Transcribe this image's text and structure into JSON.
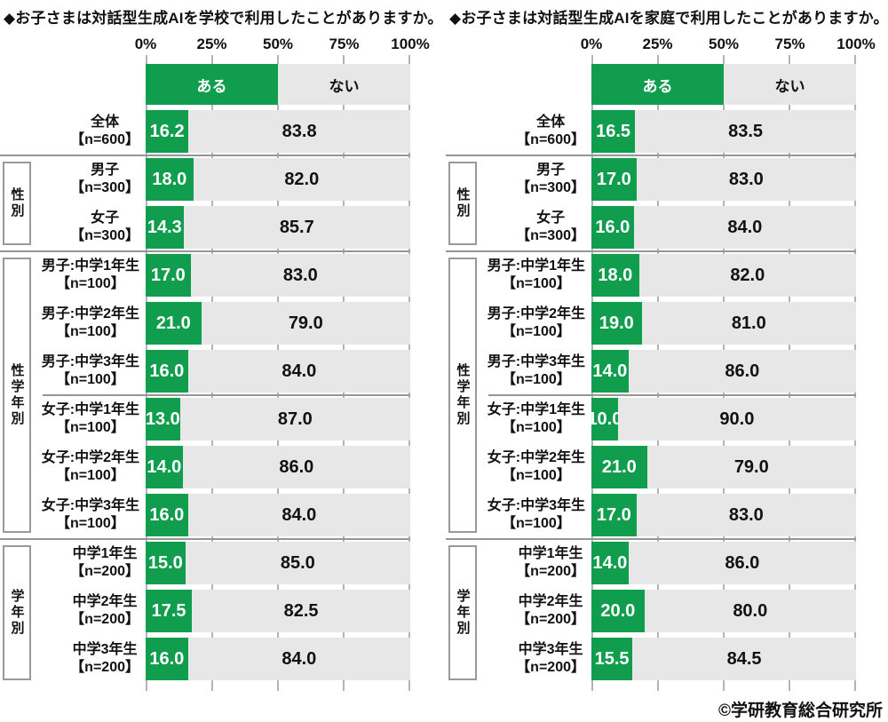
{
  "footer": "©学研教育総合研究所",
  "colors": {
    "yes": "#109E4E",
    "no": "#E7E7E7",
    "tick": "#B4B4B4",
    "separator": "#969696"
  },
  "chart_data": [
    {
      "type": "bar",
      "stacked": true,
      "orientation": "horizontal",
      "title": "◆お子さまは対話型生成AIを学校で利用したことがありますか。",
      "xlim": [
        0,
        100
      ],
      "x_ticks": [
        "0%",
        "25%",
        "50%",
        "75%",
        "100%"
      ],
      "legend": [
        "ある",
        "ない"
      ],
      "legend_position": "top",
      "rows": [
        {
          "label": "全体",
          "n": "【n=600】",
          "yes": "16.2",
          "no": "83.8"
        },
        {
          "label": "男子",
          "n": "【n=300】",
          "yes": "18.0",
          "no": "82.0"
        },
        {
          "label": "女子",
          "n": "【n=300】",
          "yes": "14.3",
          "no": "85.7"
        },
        {
          "label": "男子:中学1年生",
          "n": "【n=100】",
          "yes": "17.0",
          "no": "83.0"
        },
        {
          "label": "男子:中学2年生",
          "n": "【n=100】",
          "yes": "21.0",
          "no": "79.0"
        },
        {
          "label": "男子:中学3年生",
          "n": "【n=100】",
          "yes": "16.0",
          "no": "84.0"
        },
        {
          "label": "女子:中学1年生",
          "n": "【n=100】",
          "yes": "13.0",
          "no": "87.0"
        },
        {
          "label": "女子:中学2年生",
          "n": "【n=100】",
          "yes": "14.0",
          "no": "86.0"
        },
        {
          "label": "女子:中学3年生",
          "n": "【n=100】",
          "yes": "16.0",
          "no": "84.0"
        },
        {
          "label": "中学1年生",
          "n": "【n=200】",
          "yes": "15.0",
          "no": "85.0"
        },
        {
          "label": "中学2年生",
          "n": "【n=200】",
          "yes": "17.5",
          "no": "82.5"
        },
        {
          "label": "中学3年生",
          "n": "【n=200】",
          "yes": "16.0",
          "no": "84.0"
        }
      ],
      "series": [
        {
          "name": "ある",
          "values": [
            16.2,
            18.0,
            14.3,
            17.0,
            21.0,
            16.0,
            13.0,
            14.0,
            16.0,
            15.0,
            17.5,
            16.0
          ]
        },
        {
          "name": "ない",
          "values": [
            83.8,
            82.0,
            85.7,
            83.0,
            79.0,
            84.0,
            87.0,
            86.0,
            84.0,
            85.0,
            82.5,
            84.0
          ]
        }
      ],
      "groups": [
        {
          "label": "性別",
          "start": 1,
          "end": 2
        },
        {
          "label": "性学年別",
          "start": 3,
          "end": 8
        },
        {
          "label": "学年別",
          "start": 9,
          "end": 11
        }
      ],
      "sub_dividers": [
        6
      ]
    },
    {
      "type": "bar",
      "stacked": true,
      "orientation": "horizontal",
      "title": "◆お子さまは対話型生成AIを家庭で利用したことがありますか。",
      "xlim": [
        0,
        100
      ],
      "x_ticks": [
        "0%",
        "25%",
        "50%",
        "75%",
        "100%"
      ],
      "legend": [
        "ある",
        "ない"
      ],
      "legend_position": "top",
      "rows": [
        {
          "label": "全体",
          "n": "【n=600】",
          "yes": "16.5",
          "no": "83.5"
        },
        {
          "label": "男子",
          "n": "【n=300】",
          "yes": "17.0",
          "no": "83.0"
        },
        {
          "label": "女子",
          "n": "【n=300】",
          "yes": "16.0",
          "no": "84.0"
        },
        {
          "label": "男子:中学1年生",
          "n": "【n=100】",
          "yes": "18.0",
          "no": "82.0"
        },
        {
          "label": "男子:中学2年生",
          "n": "【n=100】",
          "yes": "19.0",
          "no": "81.0"
        },
        {
          "label": "男子:中学3年生",
          "n": "【n=100】",
          "yes": "14.0",
          "no": "86.0"
        },
        {
          "label": "女子:中学1年生",
          "n": "【n=100】",
          "yes": "10.0",
          "no": "90.0"
        },
        {
          "label": "女子:中学2年生",
          "n": "【n=100】",
          "yes": "21.0",
          "no": "79.0"
        },
        {
          "label": "女子:中学3年生",
          "n": "【n=100】",
          "yes": "17.0",
          "no": "83.0"
        },
        {
          "label": "中学1年生",
          "n": "【n=200】",
          "yes": "14.0",
          "no": "86.0"
        },
        {
          "label": "中学2年生",
          "n": "【n=200】",
          "yes": "20.0",
          "no": "80.0"
        },
        {
          "label": "中学3年生",
          "n": "【n=200】",
          "yes": "15.5",
          "no": "84.5"
        }
      ],
      "series": [
        {
          "name": "ある",
          "values": [
            16.5,
            17.0,
            16.0,
            18.0,
            19.0,
            14.0,
            10.0,
            21.0,
            17.0,
            14.0,
            20.0,
            15.5
          ]
        },
        {
          "name": "ない",
          "values": [
            83.5,
            83.0,
            84.0,
            82.0,
            81.0,
            86.0,
            90.0,
            79.0,
            83.0,
            86.0,
            80.0,
            84.5
          ]
        }
      ],
      "groups": [
        {
          "label": "性別",
          "start": 1,
          "end": 2
        },
        {
          "label": "性学年別",
          "start": 3,
          "end": 8
        },
        {
          "label": "学年別",
          "start": 9,
          "end": 11
        }
      ],
      "sub_dividers": [
        6
      ]
    }
  ]
}
